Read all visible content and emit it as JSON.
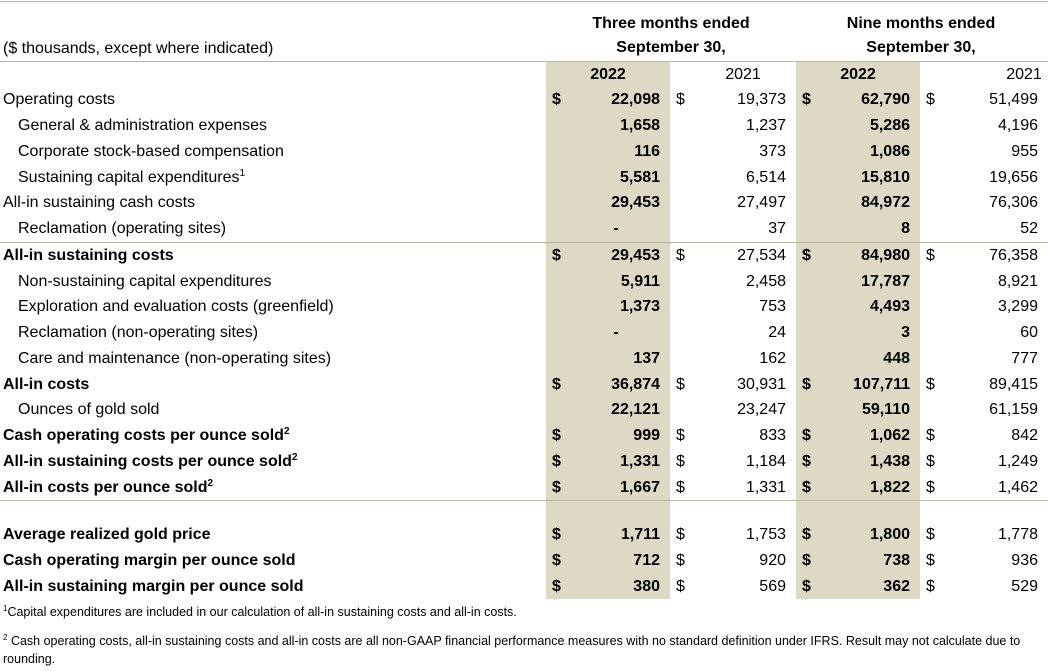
{
  "header": {
    "units_note": "($ thousands, except where indicated)",
    "three_months_line1": "Three months ended",
    "three_months_line2": "September 30,",
    "nine_months_line1": "Nine months ended",
    "nine_months_line2": "September 30,",
    "years": [
      "2022",
      "2021",
      "2022",
      "2021"
    ]
  },
  "rows": [
    {
      "label": "Operating costs",
      "sup": "",
      "bold": false,
      "indent": false,
      "c1": "$",
      "v1": "22,098",
      "c2": "$",
      "v2": "19,373",
      "c3": "$",
      "v3": "62,790",
      "c4": "$",
      "v4": "51,499"
    },
    {
      "label": "General & administration expenses",
      "sup": "",
      "bold": false,
      "indent": true,
      "c1": "",
      "v1": "1,658",
      "c2": "",
      "v2": "1,237",
      "c3": "",
      "v3": "5,286",
      "c4": "",
      "v4": "4,196"
    },
    {
      "label": "Corporate stock-based compensation",
      "sup": "",
      "bold": false,
      "indent": true,
      "c1": "",
      "v1": "116",
      "c2": "",
      "v2": "373",
      "c3": "",
      "v3": "1,086",
      "c4": "",
      "v4": "955"
    },
    {
      "label": "Sustaining capital expenditures",
      "sup": "1",
      "bold": false,
      "indent": true,
      "c1": "",
      "v1": "5,581",
      "c2": "",
      "v2": "6,514",
      "c3": "",
      "v3": "15,810",
      "c4": "",
      "v4": "19,656"
    },
    {
      "label": "All-in sustaining cash costs",
      "sup": "",
      "bold": false,
      "indent": false,
      "c1": "",
      "v1": "29,453",
      "c2": "",
      "v2": "27,497",
      "c3": "",
      "v3": "84,972",
      "c4": "",
      "v4": "76,306"
    },
    {
      "label": "Reclamation (operating sites)",
      "sup": "",
      "bold": false,
      "indent": true,
      "c1": "",
      "v1": "-",
      "c2": "",
      "v2": "37",
      "c3": "",
      "v3": "8",
      "c4": "",
      "v4": "52"
    },
    {
      "label": "All-in sustaining costs",
      "sup": "",
      "bold": true,
      "indent": false,
      "c1": "$",
      "v1": "29,453",
      "c2": "$",
      "v2": "27,534",
      "c3": "$",
      "v3": "84,980",
      "c4": "$",
      "v4": "76,358"
    },
    {
      "label": "Non-sustaining capital expenditures",
      "sup": "",
      "bold": false,
      "indent": true,
      "c1": "",
      "v1": "5,911",
      "c2": "",
      "v2": "2,458",
      "c3": "",
      "v3": "17,787",
      "c4": "",
      "v4": "8,921"
    },
    {
      "label": "Exploration and evaluation costs (greenfield)",
      "sup": "",
      "bold": false,
      "indent": true,
      "c1": "",
      "v1": "1,373",
      "c2": "",
      "v2": "753",
      "c3": "",
      "v3": "4,493",
      "c4": "",
      "v4": "3,299"
    },
    {
      "label": "Reclamation (non-operating sites)",
      "sup": "",
      "bold": false,
      "indent": true,
      "c1": "",
      "v1": "-",
      "c2": "",
      "v2": "24",
      "c3": "",
      "v3": "3",
      "c4": "",
      "v4": "60"
    },
    {
      "label": "Care and maintenance (non-operating sites)",
      "sup": "",
      "bold": false,
      "indent": true,
      "c1": "",
      "v1": "137",
      "c2": "",
      "v2": "162",
      "c3": "",
      "v3": "448",
      "c4": "",
      "v4": "777"
    },
    {
      "label": "All-in costs",
      "sup": "",
      "bold": true,
      "indent": false,
      "c1": "$",
      "v1": "36,874",
      "c2": "$",
      "v2": "30,931",
      "c3": "$",
      "v3": "107,711",
      "c4": "$",
      "v4": "89,415"
    },
    {
      "label": "Ounces of gold sold",
      "sup": "",
      "bold": false,
      "indent": true,
      "c1": "",
      "v1": "22,121",
      "c2": "",
      "v2": "23,247",
      "c3": "",
      "v3": "59,110",
      "c4": "",
      "v4": "61,159"
    },
    {
      "label": "Cash operating costs per ounce sold",
      "sup": "2",
      "bold": true,
      "indent": false,
      "c1": "$",
      "v1": "999",
      "c2": "$",
      "v2": "833",
      "c3": "$",
      "v3": "1,062",
      "c4": "$",
      "v4": "842"
    },
    {
      "label": "All-in sustaining costs per ounce sold",
      "sup": "2",
      "bold": true,
      "indent": false,
      "c1": "$",
      "v1": "1,331",
      "c2": "$",
      "v2": "1,184",
      "c3": "$",
      "v3": "1,438",
      "c4": "$",
      "v4": "1,249"
    },
    {
      "label": "All-in costs per ounce sold",
      "sup": "2",
      "bold": true,
      "indent": false,
      "c1": "$",
      "v1": "1,667",
      "c2": "$",
      "v2": "1,331",
      "c3": "$",
      "v3": "1,822",
      "c4": "$",
      "v4": "1,462"
    },
    {
      "label": "Average realized gold price",
      "sup": "",
      "bold": true,
      "indent": false,
      "c1": "$",
      "v1": "1,711",
      "c2": "$",
      "v2": "1,753",
      "c3": "$",
      "v3": "1,800",
      "c4": "$",
      "v4": "1,778"
    },
    {
      "label": "Cash operating margin per ounce sold",
      "sup": "",
      "bold": true,
      "indent": false,
      "c1": "$",
      "v1": "712",
      "c2": "$",
      "v2": "920",
      "c3": "$",
      "v3": "738",
      "c4": "$",
      "v4": "936"
    },
    {
      "label": "All-in sustaining margin per ounce sold",
      "sup": "",
      "bold": true,
      "indent": false,
      "c1": "$",
      "v1": "380",
      "c2": "$",
      "v2": "569",
      "c3": "$",
      "v3": "362",
      "c4": "$",
      "v4": "529"
    }
  ],
  "footnotes": [
    {
      "sup": "1",
      "text": "Capital expenditures are included in our calculation of all-in sustaining costs and all-in costs."
    },
    {
      "sup": "2",
      "text": "Cash operating costs, all-in sustaining costs and all-in costs are all non-GAAP financial performance measures with no standard definition under IFRS.  Result may not calculate due to rounding."
    }
  ],
  "colors": {
    "shade": "#ddd9c4",
    "rule": "#b8b8a0"
  }
}
